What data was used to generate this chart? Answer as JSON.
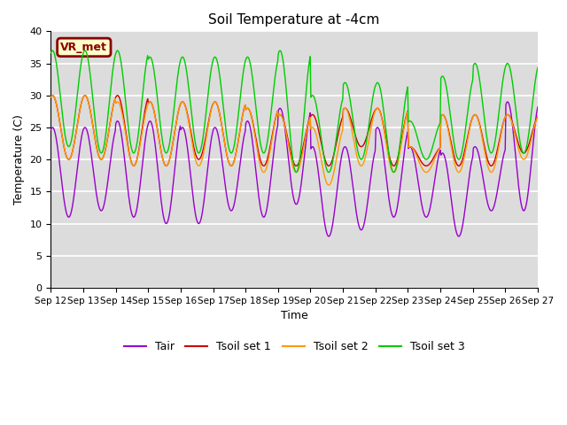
{
  "title": "Soil Temperature at -4cm",
  "xlabel": "Time",
  "ylabel": "Temperature (C)",
  "ylim": [
    0,
    40
  ],
  "yticks": [
    0,
    5,
    10,
    15,
    20,
    25,
    30,
    35,
    40
  ],
  "x_labels": [
    "Sep 12",
    "Sep 13",
    "Sep 14",
    "Sep 15",
    "Sep 16",
    "Sep 17",
    "Sep 18",
    "Sep 19",
    "Sep 20",
    "Sep 21",
    "Sep 22",
    "Sep 23",
    "Sep 24",
    "Sep 25",
    "Sep 26",
    "Sep 27"
  ],
  "background_color": "#dcdcdc",
  "figure_color": "#ffffff",
  "annotation_text": "VR_met",
  "annotation_bg": "#ffffcc",
  "annotation_border": "#8b0000",
  "colors": {
    "Tair": "#9900cc",
    "Tsoil1": "#cc0000",
    "Tsoil2": "#ff9900",
    "Tsoil3": "#00cc00"
  },
  "legend_labels": [
    "Tair",
    "Tsoil set 1",
    "Tsoil set 2",
    "Tsoil set 3"
  ],
  "day_peaks_Tair": [
    25,
    25,
    26,
    26,
    25,
    25,
    26,
    28,
    22,
    22,
    25,
    22,
    21,
    22,
    29
  ],
  "day_troughs_Tair": [
    11,
    12,
    11,
    10,
    10,
    12,
    11,
    13,
    8,
    9,
    11,
    11,
    8,
    12,
    12
  ],
  "day_peaks_Tsoil1": [
    30,
    30,
    30,
    29,
    29,
    29,
    28,
    27,
    27,
    28,
    28,
    22,
    27,
    27,
    27
  ],
  "day_troughs_Tsoil1": [
    20,
    20,
    19,
    19,
    20,
    19,
    19,
    19,
    19,
    22,
    19,
    19,
    19,
    19,
    21
  ],
  "day_peaks_Tsoil2": [
    30,
    30,
    29,
    29,
    29,
    29,
    28,
    27,
    25,
    28,
    28,
    22,
    27,
    27,
    27
  ],
  "day_troughs_Tsoil2": [
    20,
    20,
    19,
    19,
    19,
    19,
    18,
    18,
    16,
    19,
    18,
    18,
    18,
    18,
    20
  ],
  "day_peaks_Tsoil3": [
    37,
    37,
    37,
    36,
    36,
    36,
    36,
    37,
    30,
    32,
    32,
    26,
    33,
    35,
    35
  ],
  "day_troughs_Tsoil3": [
    22,
    21,
    21,
    21,
    21,
    21,
    21,
    18,
    18,
    20,
    18,
    20,
    20,
    21,
    21
  ]
}
